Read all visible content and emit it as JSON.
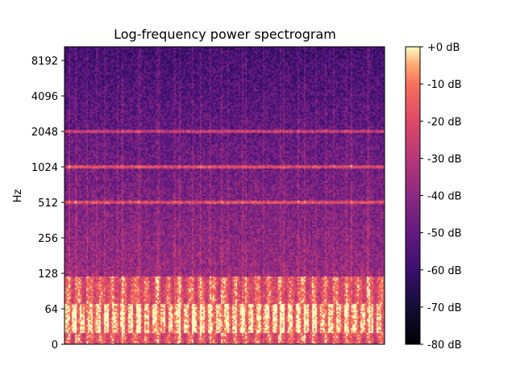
{
  "chart_data": {
    "type": "heatmap",
    "title": "Log-frequency power spectrogram",
    "xlabel": "",
    "ylabel": "Hz",
    "y_scale": "log",
    "y_ticks": [
      "0",
      "64",
      "128",
      "256",
      "512",
      "1024",
      "2048",
      "4096",
      "8192"
    ],
    "y_tick_values": [
      0,
      64,
      128,
      256,
      512,
      1024,
      2048,
      4096,
      8192
    ],
    "x_ticks": [],
    "colorbar": {
      "colormap": "magma",
      "range_db": [
        -80,
        0
      ],
      "ticks": [
        "+0 dB",
        "-10 dB",
        "-20 dB",
        "-30 dB",
        "-40 dB",
        "-50 dB",
        "-60 dB",
        "-70 dB",
        "-80 dB"
      ],
      "tick_values": [
        0,
        -10,
        -20,
        -30,
        -40,
        -50,
        -60,
        -70,
        -80
      ]
    },
    "harmonic_bands_hz": [
      40,
      55,
      80,
      110,
      512,
      1024,
      2048
    ],
    "grid": false
  }
}
